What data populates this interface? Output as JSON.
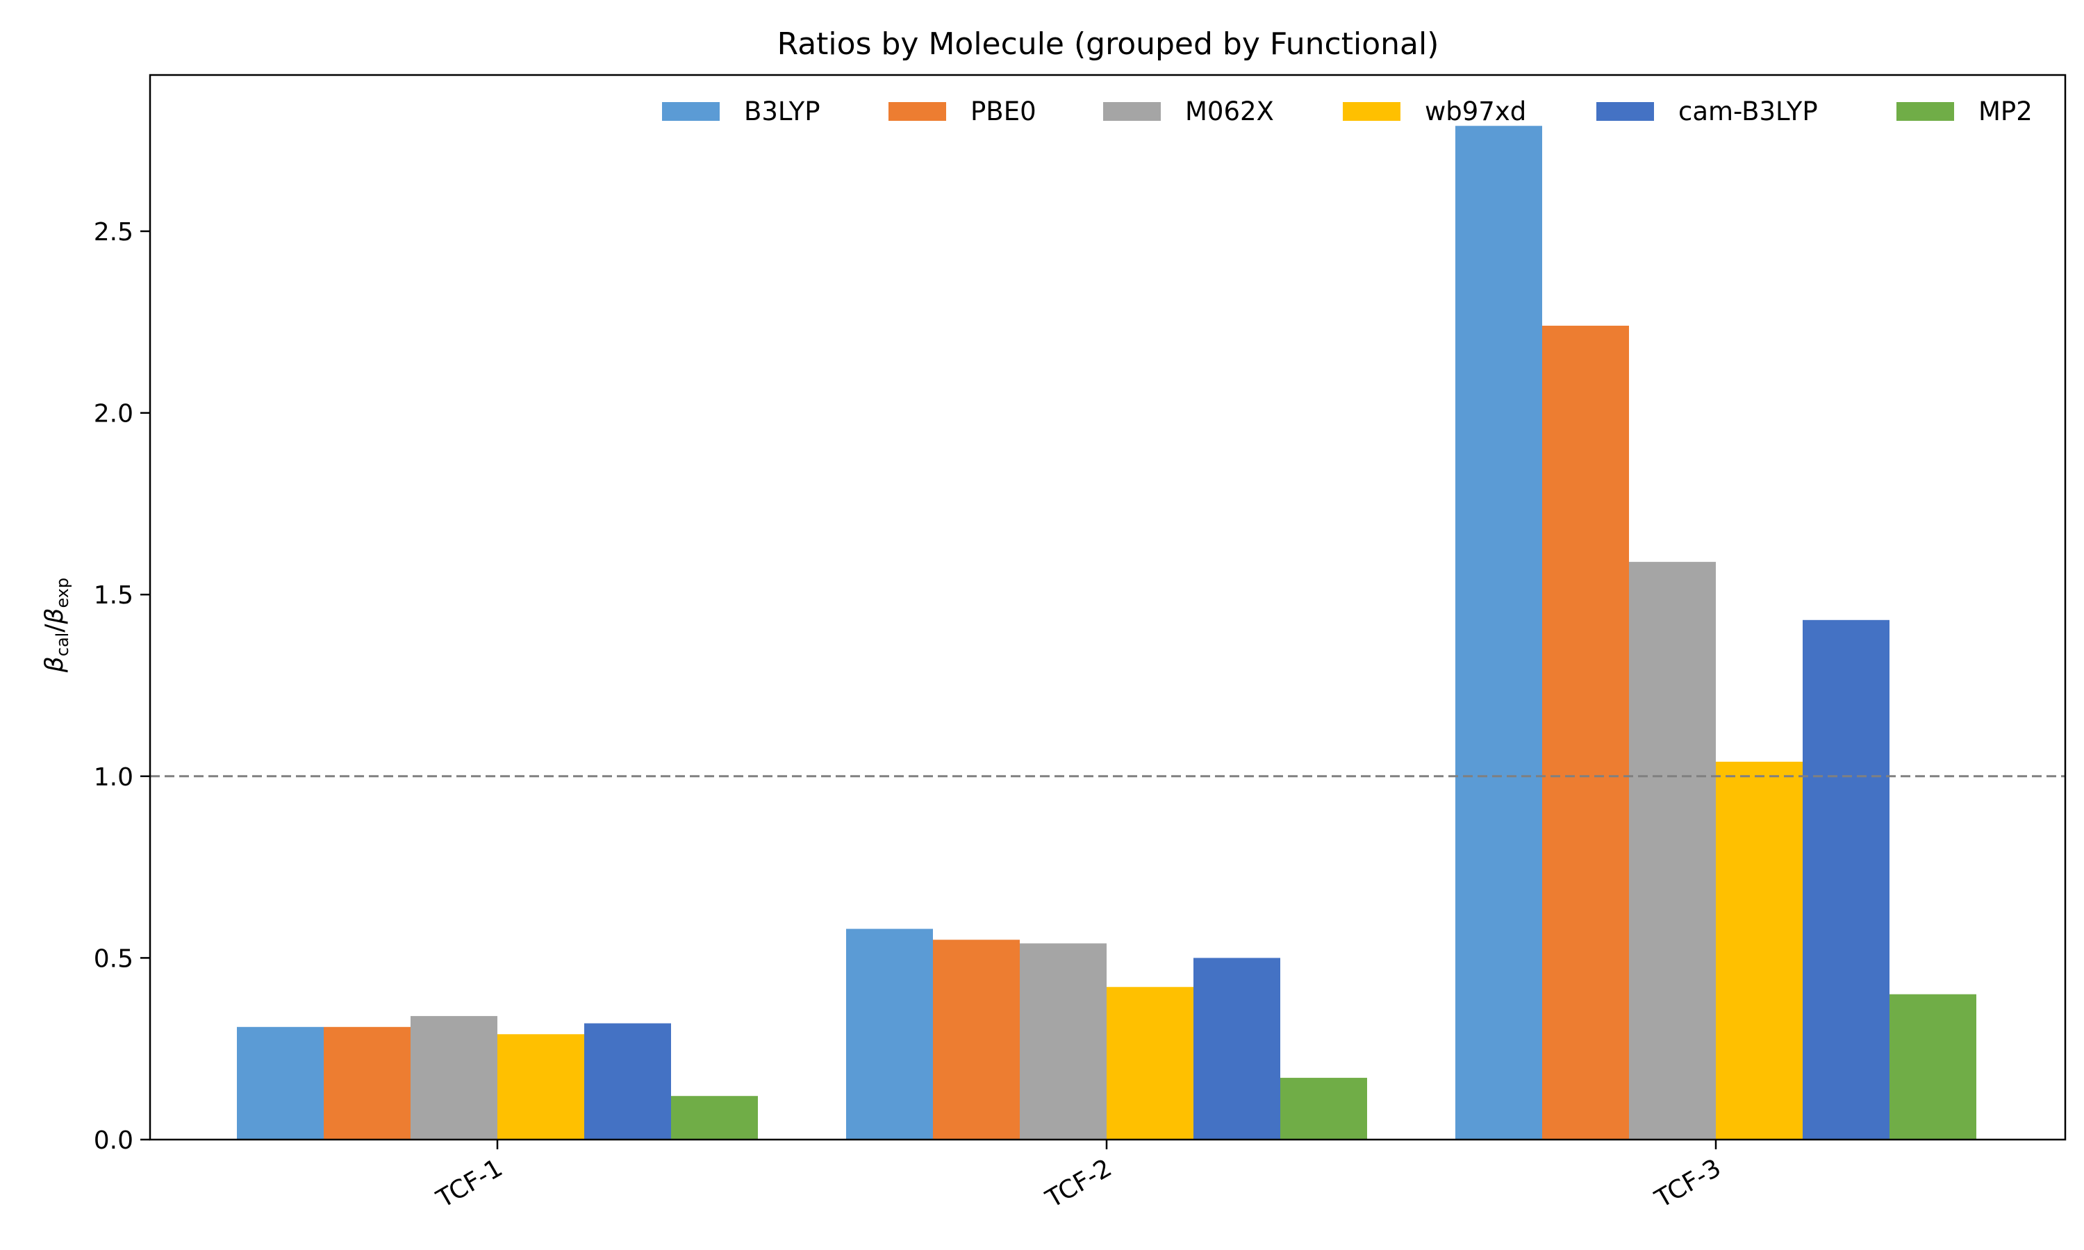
{
  "chart_data": {
    "type": "bar",
    "title": "Ratios by Molecule (grouped by Functional)",
    "xlabel": "",
    "ylabel": {
      "main1": "β",
      "sub1": "cal",
      "slash": "/",
      "main2": "β",
      "sub2": "exp"
    },
    "categories": [
      "TCF-1",
      "TCF-2",
      "TCF-3"
    ],
    "ylim": [
      0,
      2.93
    ],
    "yticks": [
      0.0,
      0.5,
      1.0,
      1.5,
      2.0,
      2.5
    ],
    "ytick_labels": [
      "0.0",
      "0.5",
      "1.0",
      "1.5",
      "2.0",
      "2.5"
    ],
    "reference_line": {
      "y": 1.0,
      "style": "dashed",
      "color": "#808080"
    },
    "grid": false,
    "legend_position": "top-right",
    "series": [
      {
        "name": "B3LYP",
        "color": "#5B9BD5",
        "values": [
          0.31,
          0.58,
          2.79
        ]
      },
      {
        "name": "PBE0",
        "color": "#ED7D31",
        "values": [
          0.31,
          0.55,
          2.24
        ]
      },
      {
        "name": "M062X",
        "color": "#A5A5A5",
        "values": [
          0.34,
          0.54,
          1.59
        ]
      },
      {
        "name": "wb97xd",
        "color": "#FFC000",
        "values": [
          0.29,
          0.42,
          1.04
        ]
      },
      {
        "name": "cam-B3LYP",
        "color": "#4472C4",
        "values": [
          0.32,
          0.5,
          1.43
        ]
      },
      {
        "name": "MP2",
        "color": "#70AD47",
        "values": [
          0.12,
          0.17,
          0.4
        ]
      }
    ]
  }
}
